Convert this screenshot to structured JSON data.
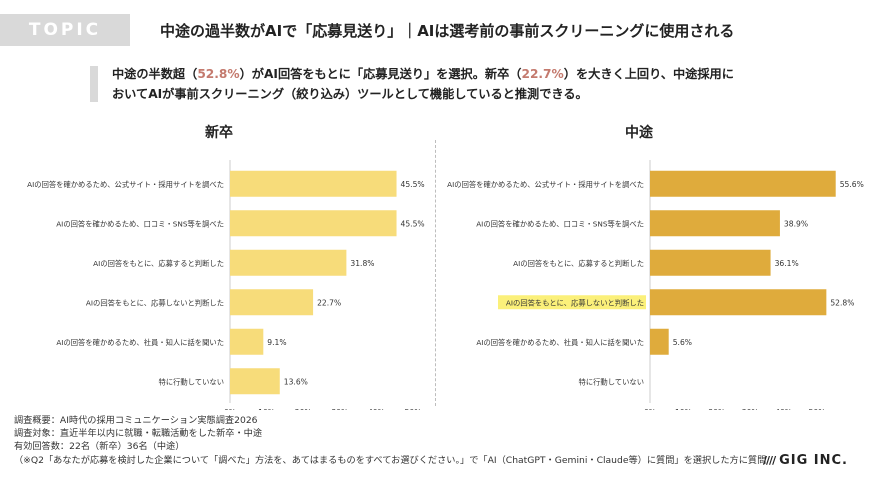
{
  "header": {
    "badge": "TOPIC",
    "title": "中途の過半数がAIで「応募見送り」｜AIは選考前の事前スクリーニングに使用される"
  },
  "summary": {
    "p1": "中途の半数超（",
    "h1": "52.8%",
    "p2": "）がAI回答をもとに「応募見送り」を選択。新卒（",
    "h2": "22.7%",
    "p3": "）を大きく上回り、中途採用に",
    "line2": "おいてAIが事前スクリーニング（絞り込み）ツールとして機能していると推測できる。"
  },
  "chart_data": [
    {
      "type": "bar",
      "orientation": "horizontal",
      "title": "新卒",
      "categories": [
        "AIの回答を確かめるため、公式サイト・採用サイトを調べた",
        "AIの回答を確かめるため、口コミ・SNS等を調べた",
        "AIの回答をもとに、応募すると判断した",
        "AIの回答をもとに、応募しないと判断した",
        "AIの回答を確かめるため、社員・知人に話を聞いた",
        "特に行動していない"
      ],
      "values": [
        45.5,
        45.5,
        31.8,
        22.7,
        9.1,
        13.6
      ],
      "value_labels": [
        "45.5%",
        "45.5%",
        "31.8%",
        "22.7%",
        "9.1%",
        "13.6%"
      ],
      "xlim": [
        0,
        50
      ],
      "ticks": [
        "0%",
        "10%",
        "20%",
        "30%",
        "40%",
        "50%"
      ],
      "bar_color": "#f7dc7a",
      "highlight_index": -1
    },
    {
      "type": "bar",
      "orientation": "horizontal",
      "title": "中途",
      "categories": [
        "AIの回答を確かめるため、公式サイト・採用サイトを調べた",
        "AIの回答を確かめるため、口コミ・SNS等を調べた",
        "AIの回答をもとに、応募すると判断した",
        "AIの回答をもとに、応募しないと判断した",
        "AIの回答を確かめるため、社員・知人に話を聞いた",
        "特に行動していない"
      ],
      "values": [
        55.6,
        38.9,
        36.1,
        52.8,
        5.6,
        0
      ],
      "value_labels": [
        "55.6%",
        "38.9%",
        "36.1%",
        "52.8%",
        "5.6%",
        ""
      ],
      "xlim": [
        0,
        50
      ],
      "ticks": [
        "0%",
        "10%",
        "20%",
        "30%",
        "40%",
        "50%"
      ],
      "bar_color": "#dfab3c",
      "highlight_index": 3,
      "highlight_color": "#fbf07a"
    }
  ],
  "footer": {
    "lines": [
      "調査概要：AI時代の採用コミュニケーション実態調査2026",
      "調査対象：直近半年以内に就職・転職活動をした新卒・中途",
      "有効回答数：22名（新卒）36名（中途）",
      "（※Q2「あなたが応募を検討した企業について「調べた」方法を、あてはまるものをすべてお選びください。」で「AI（ChatGPT・Gemini・Claude等）に質問」を選択した方に質問"
    ]
  },
  "logo": {
    "mark": "////",
    "text": "GIG INC."
  }
}
